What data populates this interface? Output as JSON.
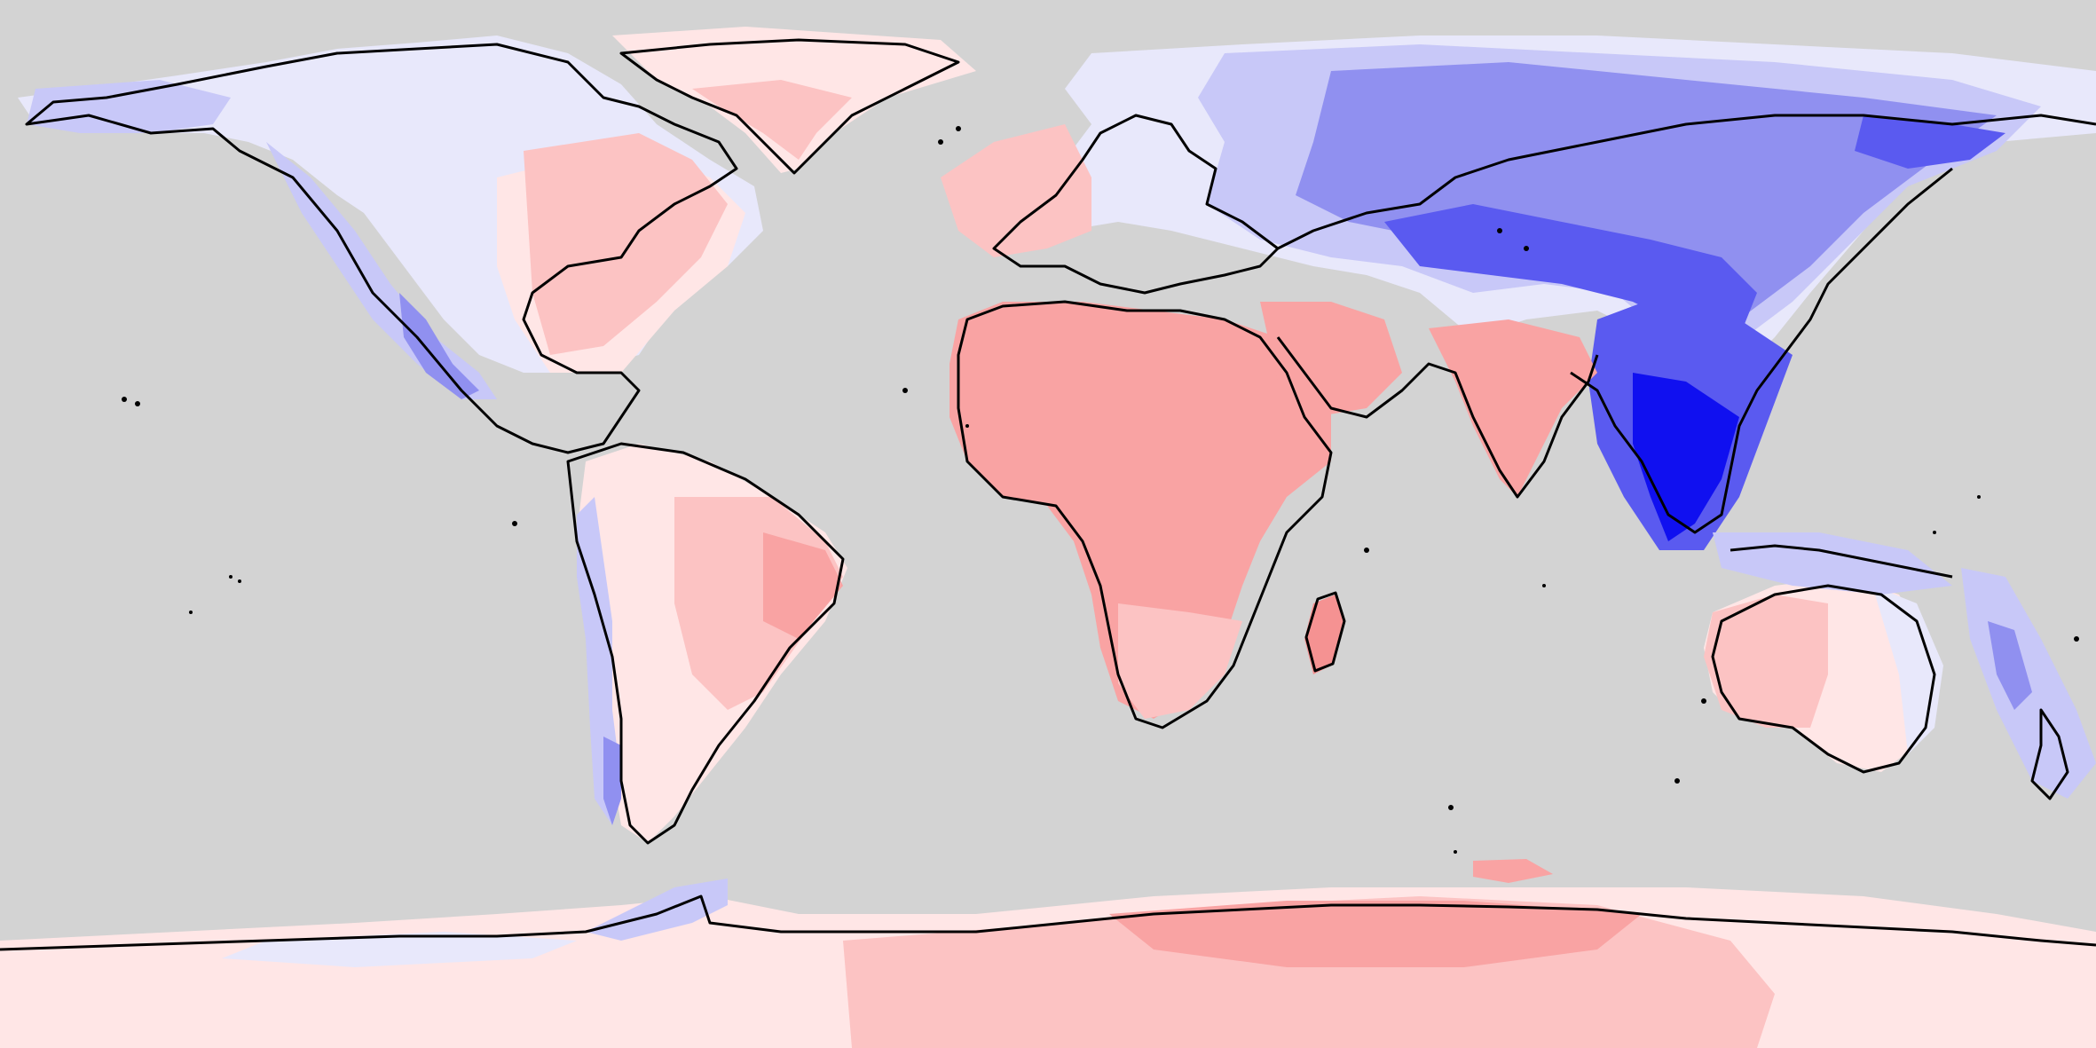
{
  "map": {
    "projection": "equirectangular",
    "background": "#d3d3d3",
    "coastline_color": "#000000",
    "scale_colors": {
      "strong_negative": "#1010f0",
      "negative": "#5a5af0",
      "moderate_negative": "#9090f0",
      "weak_negative": "#c8c8f8",
      "faint_negative": "#e8e8fb",
      "faint_positive": "#ffe6e6",
      "weak_positive": "#fcc3c3",
      "positive": "#f9a3a3",
      "strong_positive": "#f59292"
    }
  }
}
